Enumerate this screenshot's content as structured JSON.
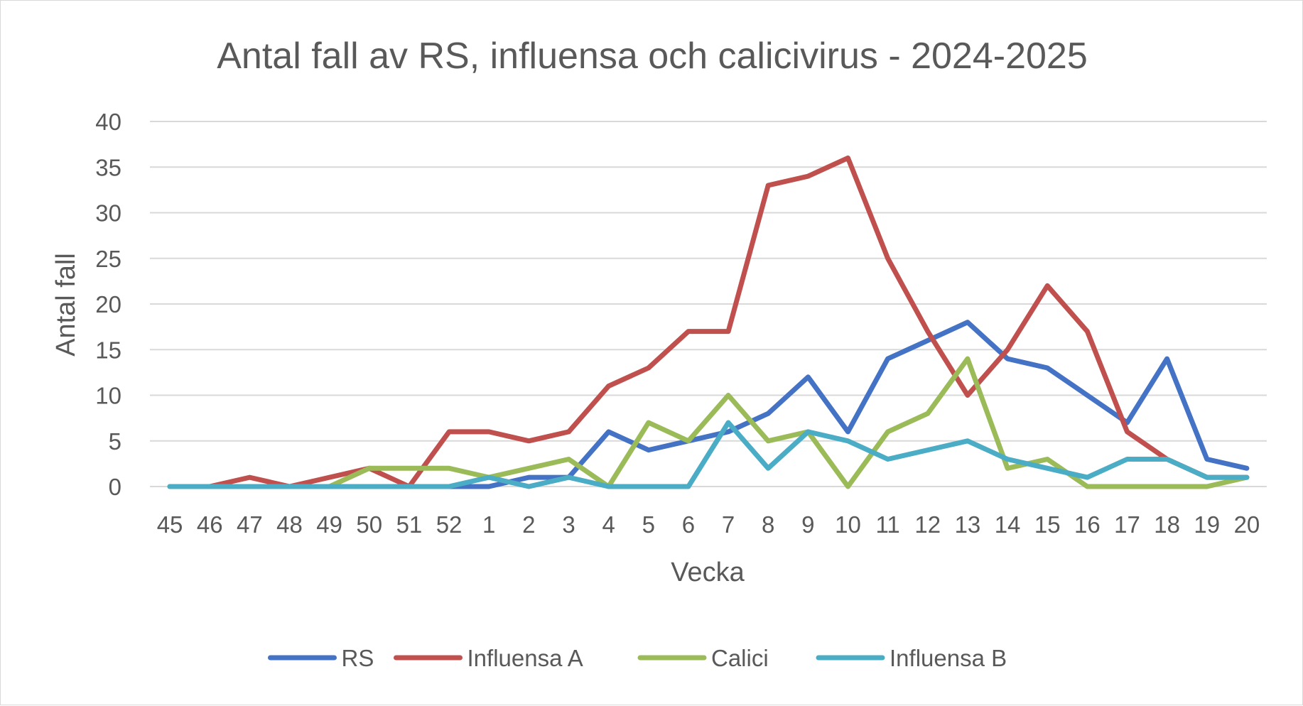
{
  "chart_data": {
    "type": "line",
    "title": "Antal fall av RS, influensa och calicivirus - 2024-2025",
    "xlabel": "Vecka",
    "ylabel": "Antal fall",
    "ylim": [
      0,
      40
    ],
    "yticks": [
      0,
      5,
      10,
      15,
      20,
      25,
      30,
      35,
      40
    ],
    "grid": true,
    "legend_position": "bottom",
    "categories": [
      "45",
      "46",
      "47",
      "48",
      "49",
      "50",
      "51",
      "52",
      "1",
      "2",
      "3",
      "4",
      "5",
      "6",
      "7",
      "8",
      "9",
      "10",
      "11",
      "12",
      "13",
      "14",
      "15",
      "16",
      "17",
      "18",
      "19",
      "20"
    ],
    "series": [
      {
        "name": "RS",
        "color": "#4472C4",
        "values": [
          0,
          0,
          0,
          0,
          0,
          0,
          0,
          0,
          0,
          1,
          1,
          6,
          4,
          5,
          6,
          8,
          12,
          6,
          14,
          16,
          18,
          14,
          13,
          10,
          7,
          14,
          3,
          2
        ]
      },
      {
        "name": "Influensa A",
        "color": "#C0504D",
        "values": [
          0,
          0,
          1,
          0,
          1,
          2,
          0,
          6,
          6,
          5,
          6,
          11,
          13,
          17,
          17,
          33,
          34,
          36,
          25,
          17,
          10,
          15,
          22,
          17,
          6,
          3,
          1,
          1
        ]
      },
      {
        "name": "Calici",
        "color": "#9BBB59",
        "values": [
          0,
          0,
          0,
          0,
          0,
          2,
          2,
          2,
          1,
          2,
          3,
          0,
          7,
          5,
          10,
          5,
          6,
          0,
          6,
          8,
          14,
          2,
          3,
          0,
          0,
          0,
          0,
          1
        ]
      },
      {
        "name": "Influensa B",
        "color": "#4BACC6",
        "values": [
          0,
          0,
          0,
          0,
          0,
          0,
          0,
          0,
          1,
          0,
          1,
          0,
          0,
          0,
          7,
          2,
          6,
          5,
          3,
          4,
          5,
          3,
          2,
          1,
          3,
          3,
          1,
          1
        ]
      }
    ]
  }
}
